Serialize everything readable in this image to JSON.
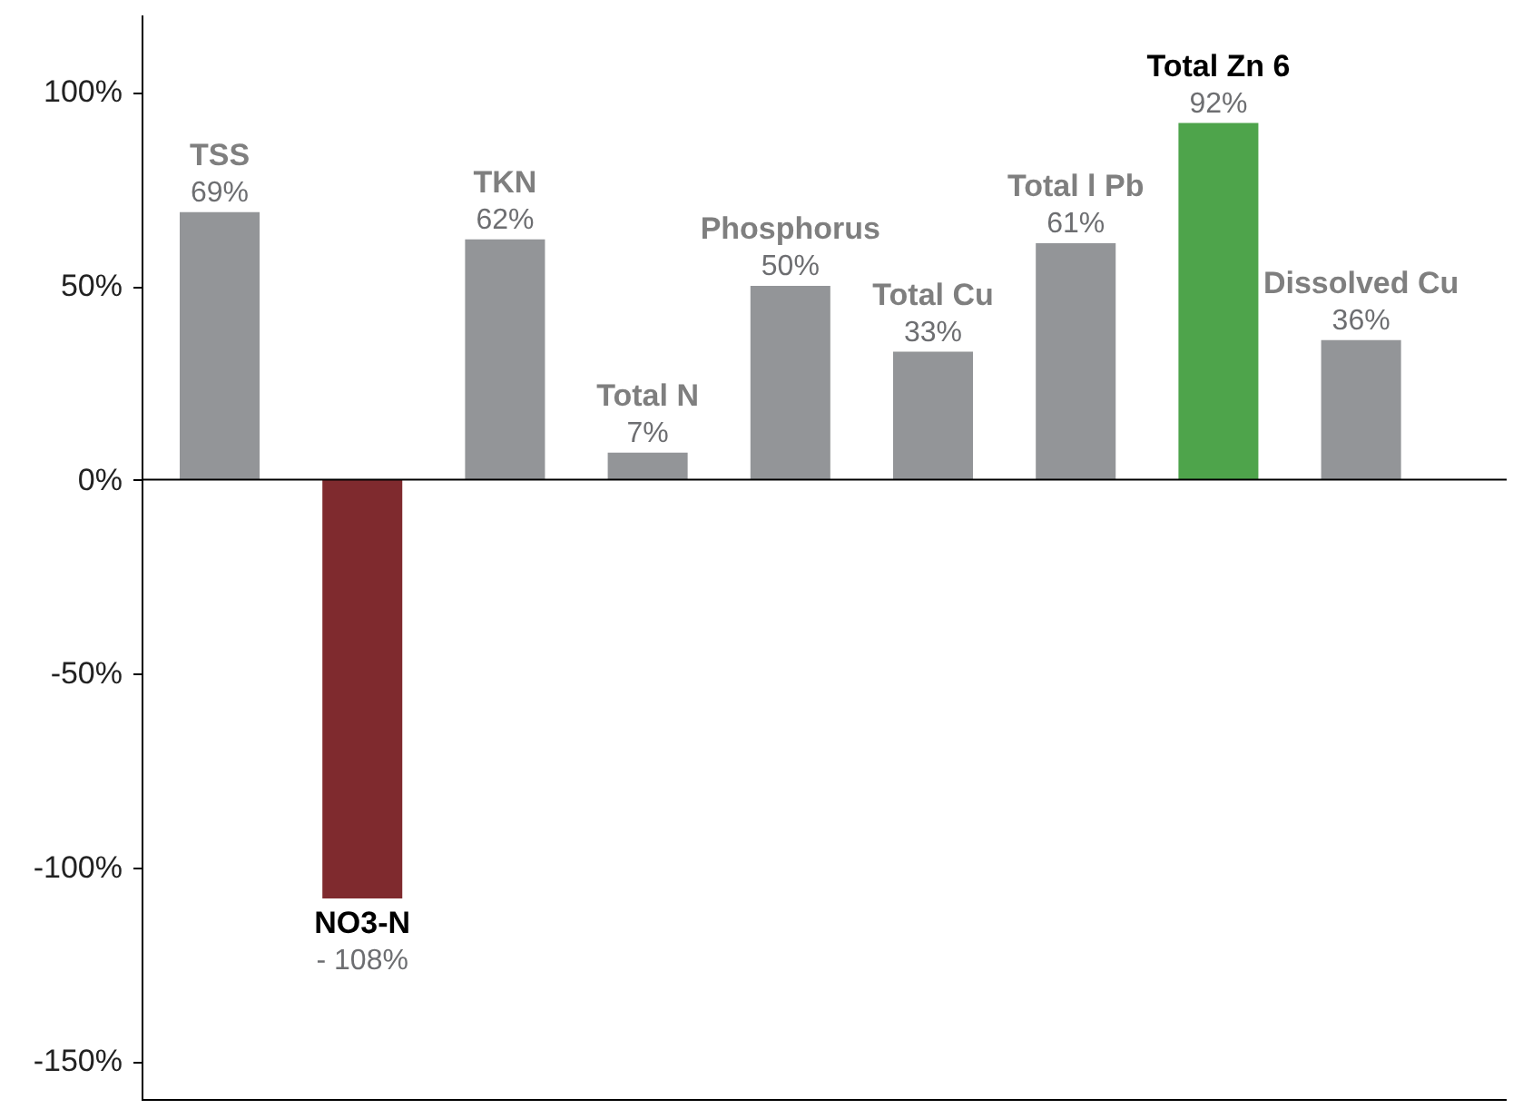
{
  "chart_data": {
    "type": "bar",
    "categories": [
      "TSS",
      "NO3-N",
      "TKN",
      "Total N",
      "Phosphorus",
      "Total Cu",
      "Total l Pb",
      "Total Zn 6",
      "Dissolved Cu"
    ],
    "values": [
      69,
      -108,
      62,
      7,
      50,
      33,
      61,
      92,
      36
    ],
    "colors": [
      "#939598",
      "#7f2a2e",
      "#939598",
      "#939598",
      "#939598",
      "#939598",
      "#939598",
      "#4ea44b",
      "#939598"
    ],
    "value_labels": [
      "69%",
      "- 108%",
      "62%",
      "7%",
      "50%",
      "33%",
      "61%",
      "92%",
      "36%"
    ],
    "ylim": [
      -160,
      120
    ],
    "yticks": [
      {
        "value": -150,
        "label": "-150%"
      },
      {
        "value": -100,
        "label": "-100%"
      },
      {
        "value": -50,
        "label": "-50%"
      },
      {
        "value": 0,
        "label": "0%"
      },
      {
        "value": 50,
        "label": "50%"
      },
      {
        "value": 100,
        "label": "100%"
      }
    ]
  }
}
